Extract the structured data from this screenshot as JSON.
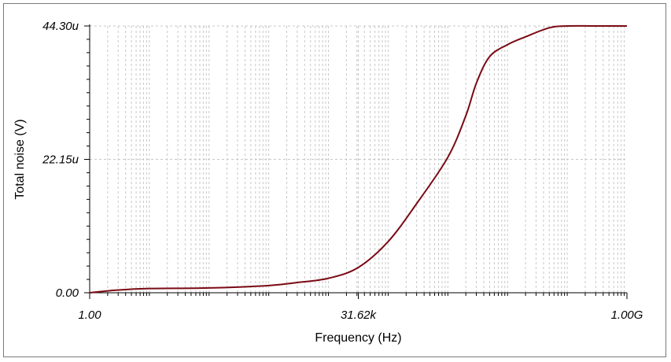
{
  "chart_data": {
    "type": "line",
    "title": "",
    "xlabel": "Frequency (Hz)",
    "ylabel": "Total noise (V)",
    "x_scale": "log",
    "xlim": [
      1,
      1000000000
    ],
    "ylim": [
      0,
      4.43e-05
    ],
    "x_tick_labels": [
      "1.00",
      "31.62k",
      "1.00G"
    ],
    "y_tick_labels": [
      "0.00",
      "22.15u",
      "44.30u"
    ],
    "grid": true,
    "line_color": "#7a0a14",
    "series": [
      {
        "x": [
          1,
          3,
          10,
          100,
          1000,
          3000,
          10000,
          31620,
          100000,
          300000,
          1000000,
          2000000,
          3000000,
          5000000,
          10000000,
          20000000,
          50000000,
          100000000,
          300000000,
          1000000000
        ],
        "y": [
          0,
          4.5e-07,
          7e-07,
          8e-07,
          1.2e-06,
          1.7e-06,
          2.4e-06,
          4.2e-06,
          8.5e-06,
          1.48e-05,
          2.25e-05,
          2.94e-05,
          3.48e-05,
          3.92e-05,
          4.12e-05,
          4.25e-05,
          4.4e-05,
          4.43e-05,
          4.43e-05,
          4.43e-05
        ]
      }
    ]
  }
}
